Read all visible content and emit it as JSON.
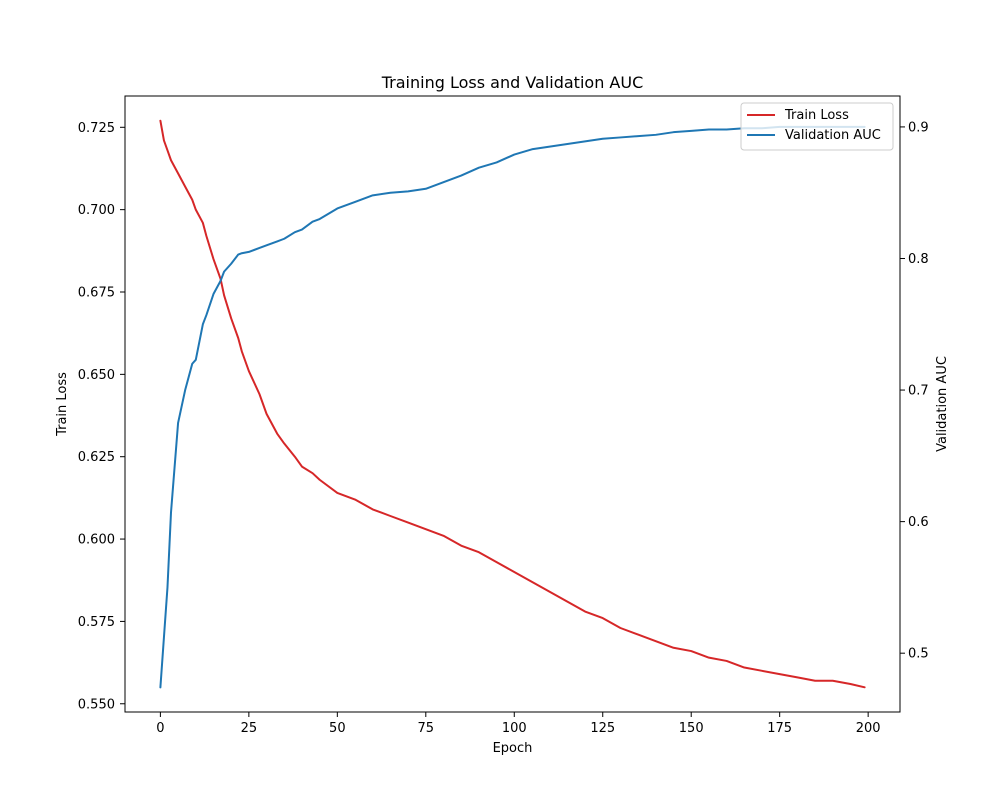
{
  "chart_data": {
    "type": "line",
    "title": "Training Loss and Validation AUC",
    "xlabel": "Epoch",
    "ylabel_left": "Train Loss",
    "ylabel_right": "Validation AUC",
    "xlim": [
      -10,
      209
    ],
    "ylim_left": [
      0.5475,
      0.7345
    ],
    "ylim_right": [
      0.4553,
      0.9235
    ],
    "x_ticks": [
      0,
      25,
      50,
      75,
      100,
      125,
      150,
      175,
      200
    ],
    "y_ticks_left": [
      0.55,
      0.575,
      0.6,
      0.625,
      0.65,
      0.675,
      0.7,
      0.725
    ],
    "y_ticks_right": [
      0.5,
      0.6,
      0.7,
      0.8,
      0.9
    ],
    "grid": false,
    "legend_position": "top-right",
    "x": [
      0,
      1,
      2,
      3,
      5,
      7,
      9,
      10,
      12,
      13,
      15,
      17,
      18,
      20,
      22,
      23,
      25,
      28,
      30,
      33,
      35,
      38,
      40,
      43,
      45,
      50,
      55,
      60,
      65,
      70,
      75,
      80,
      85,
      90,
      95,
      100,
      105,
      110,
      115,
      120,
      125,
      130,
      135,
      140,
      145,
      150,
      155,
      160,
      165,
      170,
      175,
      180,
      185,
      190,
      195,
      199
    ],
    "series": [
      {
        "name": "Train Loss",
        "axis": "left",
        "color": "#d62728",
        "values": [
          0.727,
          0.721,
          0.718,
          0.715,
          0.711,
          0.707,
          0.703,
          0.7,
          0.696,
          0.692,
          0.685,
          0.679,
          0.674,
          0.667,
          0.661,
          0.657,
          0.651,
          0.644,
          0.638,
          0.632,
          0.629,
          0.625,
          0.622,
          0.62,
          0.618,
          0.614,
          0.612,
          0.609,
          0.607,
          0.605,
          0.603,
          0.601,
          0.598,
          0.596,
          0.593,
          0.59,
          0.587,
          0.584,
          0.581,
          0.578,
          0.576,
          0.573,
          0.571,
          0.569,
          0.567,
          0.566,
          0.564,
          0.563,
          0.561,
          0.56,
          0.559,
          0.558,
          0.557,
          0.557,
          0.556,
          0.555
        ]
      },
      {
        "name": "Validation AUC",
        "axis": "right",
        "color": "#1f77b4",
        "values": [
          0.474,
          0.512,
          0.55,
          0.607,
          0.675,
          0.7,
          0.72,
          0.723,
          0.75,
          0.757,
          0.773,
          0.783,
          0.79,
          0.796,
          0.803,
          0.804,
          0.805,
          0.808,
          0.81,
          0.813,
          0.815,
          0.82,
          0.822,
          0.828,
          0.83,
          0.838,
          0.843,
          0.848,
          0.85,
          0.851,
          0.853,
          0.858,
          0.863,
          0.869,
          0.873,
          0.879,
          0.883,
          0.885,
          0.887,
          0.889,
          0.891,
          0.892,
          0.893,
          0.894,
          0.896,
          0.897,
          0.898,
          0.898,
          0.899,
          0.899,
          0.9,
          0.9,
          0.9,
          0.9,
          0.9,
          0.9
        ]
      }
    ]
  }
}
